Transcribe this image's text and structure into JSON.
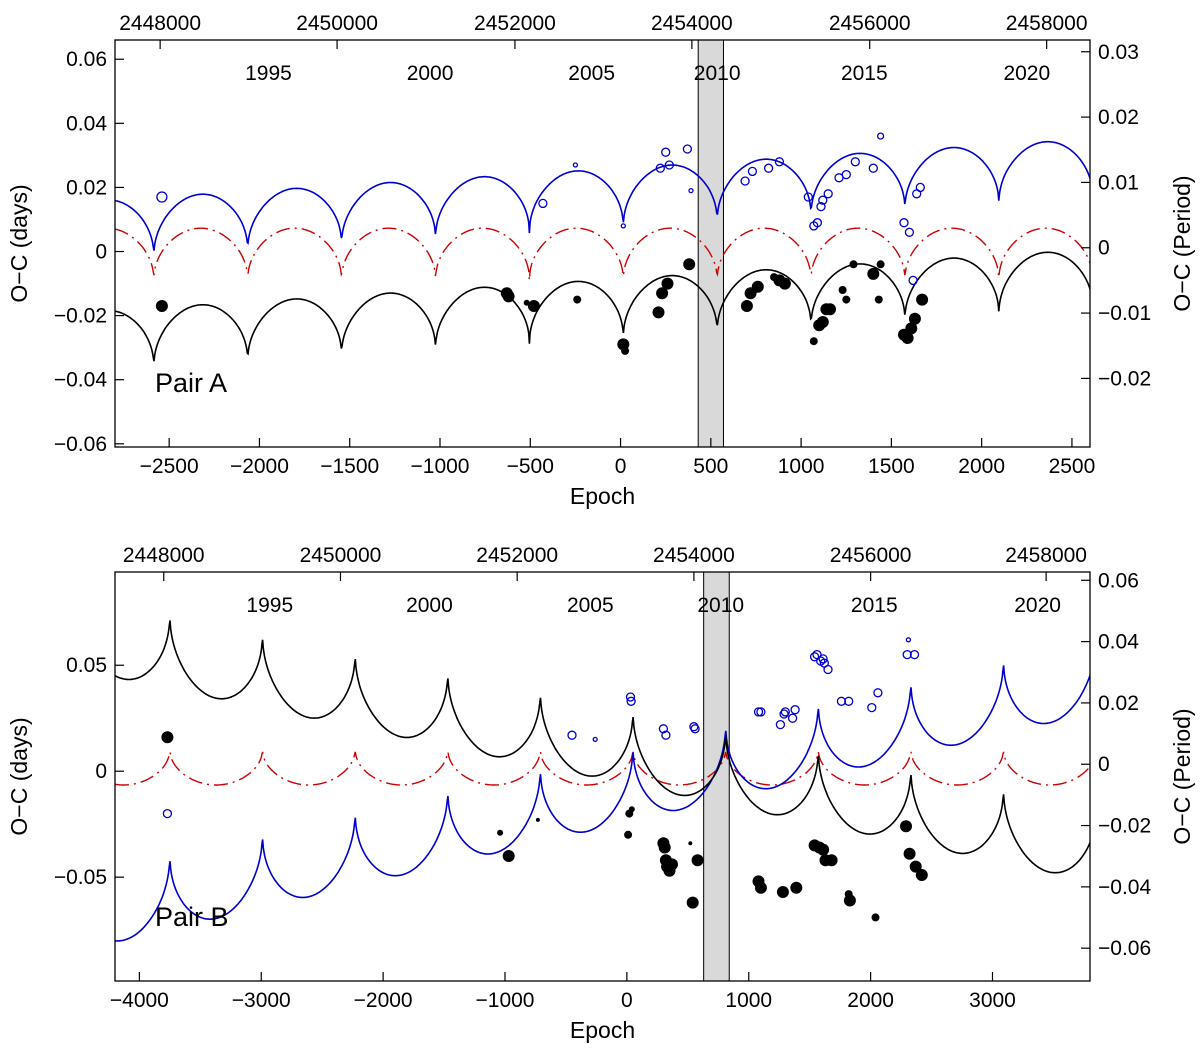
{
  "chart_data": [
    {
      "type": "scatter",
      "id": "A",
      "panel_label": "Pair A",
      "xlabel": "Epoch",
      "ylabel": "O−C (days)",
      "ylabel_right": "O−C (Period)",
      "xlim": [
        -2800,
        2600
      ],
      "ylim": [
        -0.061,
        0.066
      ],
      "ylim_right": [
        -0.0305,
        0.0318
      ],
      "x_ticks": [
        -2500,
        -2000,
        -1500,
        -1000,
        -500,
        0,
        500,
        1000,
        1500,
        2000,
        2500
      ],
      "x_tick_labels": [
        "−2500",
        "−2000",
        "−1500",
        "−1000",
        "−500",
        "0",
        "500",
        "1000",
        "1500",
        "2000",
        "2500"
      ],
      "y_ticks": [
        -0.06,
        -0.04,
        -0.02,
        0,
        0.02,
        0.04,
        0.06
      ],
      "y_tick_labels": [
        "−0.06",
        "−0.04",
        "−0.02",
        "0",
        "0.02",
        "0.04",
        "0.06"
      ],
      "y_ticks_right": [
        -0.02,
        -0.01,
        0,
        0.01,
        0.02,
        0.03
      ],
      "y_tick_labels_right": [
        "−0.02",
        "−0.01",
        "0",
        "0.01",
        "0.02",
        "0.03"
      ],
      "top_jd_ticks": [
        {
          "label": "2448000",
          "epoch": -2550
        },
        {
          "label": "2450000",
          "epoch": -1570
        },
        {
          "label": "2452000",
          "epoch": -585
        },
        {
          "label": "2454000",
          "epoch": 395
        },
        {
          "label": "2456000",
          "epoch": 1380
        },
        {
          "label": "2458000",
          "epoch": 2360
        }
      ],
      "year_labels": [
        {
          "label": "1995",
          "epoch": -1950
        },
        {
          "label": "2000",
          "epoch": -1055
        },
        {
          "label": "2005",
          "epoch": -160
        },
        {
          "label": "2010",
          "epoch": 535
        },
        {
          "label": "2015",
          "epoch": 1350
        },
        {
          "label": "2020",
          "epoch": 2250
        }
      ],
      "shaded_epoch_range": [
        430,
        570
      ],
      "model": {
        "period": 520,
        "phase": 15,
        "amplitude": 0.0185,
        "sharpness": 2.2,
        "black_offset": -0.027,
        "black_trend": 3.5e-06,
        "red_center": 0.0015,
        "red_amp": 0.0105
      },
      "series": [
        {
          "name": "secondary",
          "color": "#0000cc",
          "marker": "open-circle",
          "curve_style": "solid",
          "points": [
            [
              -2540,
              0.017,
              5
            ],
            [
              -430,
              0.015,
              4
            ],
            [
              -250,
              0.027,
              2
            ],
            [
              15,
              0.008,
              2
            ],
            [
              220,
              0.026,
              4
            ],
            [
              250,
              0.031,
              4
            ],
            [
              270,
              0.027,
              4
            ],
            [
              370,
              0.032,
              4
            ],
            [
              390,
              0.019,
              2
            ],
            [
              690,
              0.022,
              4
            ],
            [
              730,
              0.025,
              4
            ],
            [
              820,
              0.026,
              4
            ],
            [
              880,
              0.028,
              4
            ],
            [
              1040,
              0.017,
              4
            ],
            [
              1070,
              0.008,
              4
            ],
            [
              1090,
              0.009,
              4
            ],
            [
              1110,
              0.014,
              4
            ],
            [
              1120,
              0.016,
              4
            ],
            [
              1150,
              0.018,
              4
            ],
            [
              1210,
              0.023,
              4
            ],
            [
              1250,
              0.024,
              4
            ],
            [
              1300,
              0.028,
              4
            ],
            [
              1400,
              0.026,
              4
            ],
            [
              1440,
              0.036,
              3
            ],
            [
              1570,
              0.009,
              4
            ],
            [
              1600,
              0.006,
              4
            ],
            [
              1620,
              -0.009,
              4
            ],
            [
              1640,
              0.018,
              4
            ],
            [
              1660,
              0.02,
              4
            ]
          ]
        },
        {
          "name": "model-mean",
          "color": "#cc0000",
          "marker": "none",
          "curve_style": "dash-dot",
          "points": []
        },
        {
          "name": "primary",
          "color": "#000000",
          "marker": "filled-circle",
          "curve_style": "solid",
          "points": [
            [
              -2540,
              -0.017,
              6
            ],
            [
              -630,
              -0.013,
              6
            ],
            [
              -620,
              -0.014,
              6
            ],
            [
              -520,
              -0.016,
              3
            ],
            [
              -480,
              -0.017,
              6
            ],
            [
              -240,
              -0.015,
              4
            ],
            [
              15,
              -0.029,
              6
            ],
            [
              25,
              -0.031,
              4
            ],
            [
              210,
              -0.019,
              6
            ],
            [
              230,
              -0.013,
              6
            ],
            [
              260,
              -0.01,
              6
            ],
            [
              380,
              -0.004,
              6
            ],
            [
              700,
              -0.017,
              6
            ],
            [
              720,
              -0.013,
              6
            ],
            [
              760,
              -0.011,
              6
            ],
            [
              850,
              -0.008,
              4
            ],
            [
              880,
              -0.009,
              6
            ],
            [
              910,
              -0.01,
              6
            ],
            [
              1070,
              -0.028,
              4
            ],
            [
              1100,
              -0.023,
              6
            ],
            [
              1120,
              -0.022,
              6
            ],
            [
              1140,
              -0.018,
              6
            ],
            [
              1160,
              -0.018,
              6
            ],
            [
              1230,
              -0.012,
              4
            ],
            [
              1250,
              -0.015,
              4
            ],
            [
              1290,
              -0.004,
              4
            ],
            [
              1400,
              -0.007,
              6
            ],
            [
              1430,
              -0.015,
              4
            ],
            [
              1440,
              -0.004,
              4
            ],
            [
              1570,
              -0.026,
              6
            ],
            [
              1590,
              -0.027,
              6
            ],
            [
              1610,
              -0.024,
              6
            ],
            [
              1630,
              -0.021,
              6
            ],
            [
              1670,
              -0.015,
              6
            ]
          ]
        }
      ]
    },
    {
      "type": "scatter",
      "id": "B",
      "panel_label": "Pair B",
      "xlabel": "Epoch",
      "ylabel": "O−C (days)",
      "ylabel_right": "O−C (Period)",
      "xlim": [
        -4200,
        3800
      ],
      "ylim": [
        -0.099,
        0.094
      ],
      "ylim_right": [
        -0.0707,
        0.0627
      ],
      "x_ticks": [
        -4000,
        -3000,
        -2000,
        -1000,
        0,
        1000,
        2000,
        3000
      ],
      "x_tick_labels": [
        "−4000",
        "−3000",
        "−2000",
        "−1000",
        "0",
        "1000",
        "2000",
        "3000"
      ],
      "y_ticks": [
        -0.05,
        0,
        0.05
      ],
      "y_tick_labels": [
        "−0.05",
        "0",
        "0.05"
      ],
      "y_ticks_right": [
        -0.06,
        -0.04,
        -0.02,
        0,
        0.02,
        0.04,
        0.06
      ],
      "y_tick_labels_right": [
        "−0.06",
        "−0.04",
        "−0.02",
        "0",
        "0.02",
        "0.04",
        "0.06"
      ],
      "top_jd_ticks": [
        {
          "label": "2448000",
          "epoch": -3800
        },
        {
          "label": "2450000",
          "epoch": -2350
        },
        {
          "label": "2452000",
          "epoch": -900
        },
        {
          "label": "2454000",
          "epoch": 550
        },
        {
          "label": "2456000",
          "epoch": 2000
        },
        {
          "label": "2458000",
          "epoch": 3440
        }
      ],
      "year_labels": [
        {
          "label": "1995",
          "epoch": -2930
        },
        {
          "label": "2000",
          "epoch": -1620
        },
        {
          "label": "2005",
          "epoch": -300
        },
        {
          "label": "2010",
          "epoch": 770
        },
        {
          "label": "2015",
          "epoch": 2030
        },
        {
          "label": "2020",
          "epoch": 3370
        }
      ],
      "shaded_epoch_range": [
        630,
        840
      ],
      "model": {
        "period": 760,
        "phase": 50,
        "amplitude": 0.036,
        "sharpness": 2.3,
        "black_offset": -0.006,
        "black_trend": -1.2e-05,
        "blue_offset": -0.024,
        "blue_trend": 1.35e-05,
        "red_center": -0.0015,
        "red_amp": 0.0125
      },
      "series": [
        {
          "name": "secondary",
          "color": "#0000cc",
          "marker": "open-circle",
          "curve_style": "solid",
          "points": [
            [
              -3770,
              -0.02,
              4
            ],
            [
              -450,
              0.017,
              4
            ],
            [
              -260,
              0.015,
              2
            ],
            [
              30,
              0.035,
              4
            ],
            [
              35,
              0.033,
              4
            ],
            [
              300,
              0.02,
              4
            ],
            [
              320,
              0.017,
              4
            ],
            [
              550,
              0.021,
              4
            ],
            [
              560,
              0.02,
              4
            ],
            [
              1080,
              0.028,
              4
            ],
            [
              1100,
              0.028,
              4
            ],
            [
              1260,
              0.022,
              4
            ],
            [
              1290,
              0.027,
              4
            ],
            [
              1300,
              0.028,
              4
            ],
            [
              1360,
              0.025,
              4
            ],
            [
              1380,
              0.029,
              4
            ],
            [
              1540,
              0.054,
              4
            ],
            [
              1560,
              0.055,
              4
            ],
            [
              1590,
              0.052,
              4
            ],
            [
              1610,
              0.053,
              4
            ],
            [
              1620,
              0.051,
              4
            ],
            [
              1650,
              0.048,
              4
            ],
            [
              1760,
              0.033,
              4
            ],
            [
              1820,
              0.033,
              4
            ],
            [
              2010,
              0.03,
              4
            ],
            [
              2060,
              0.037,
              4
            ],
            [
              2300,
              0.055,
              4
            ],
            [
              2310,
              0.062,
              2
            ],
            [
              2360,
              0.055,
              4
            ]
          ]
        },
        {
          "name": "model-mean",
          "color": "#cc0000",
          "marker": "none",
          "curve_style": "dash-dot",
          "points": []
        },
        {
          "name": "primary",
          "color": "#000000",
          "marker": "filled-circle",
          "curve_style": "solid",
          "points": [
            [
              -3770,
              0.016,
              6
            ],
            [
              -1040,
              -0.029,
              3
            ],
            [
              -970,
              -0.04,
              6
            ],
            [
              -730,
              -0.023,
              2
            ],
            [
              10,
              -0.03,
              4
            ],
            [
              20,
              -0.02,
              4
            ],
            [
              40,
              -0.018,
              3
            ],
            [
              300,
              -0.034,
              6
            ],
            [
              310,
              -0.036,
              6
            ],
            [
              320,
              -0.042,
              6
            ],
            [
              330,
              -0.045,
              6
            ],
            [
              350,
              -0.047,
              6
            ],
            [
              370,
              -0.044,
              6
            ],
            [
              520,
              -0.034,
              2
            ],
            [
              540,
              -0.062,
              6
            ],
            [
              580,
              -0.042,
              6
            ],
            [
              1080,
              -0.052,
              6
            ],
            [
              1100,
              -0.055,
              6
            ],
            [
              1280,
              -0.057,
              6
            ],
            [
              1390,
              -0.055,
              6
            ],
            [
              1540,
              -0.035,
              6
            ],
            [
              1580,
              -0.036,
              6
            ],
            [
              1610,
              -0.037,
              6
            ],
            [
              1630,
              -0.042,
              6
            ],
            [
              1680,
              -0.042,
              6
            ],
            [
              1820,
              -0.058,
              4
            ],
            [
              1830,
              -0.061,
              6
            ],
            [
              2040,
              -0.069,
              4
            ],
            [
              2290,
              -0.026,
              6
            ],
            [
              2320,
              -0.039,
              6
            ],
            [
              2370,
              -0.045,
              6
            ],
            [
              2420,
              -0.049,
              6
            ]
          ]
        }
      ]
    }
  ]
}
